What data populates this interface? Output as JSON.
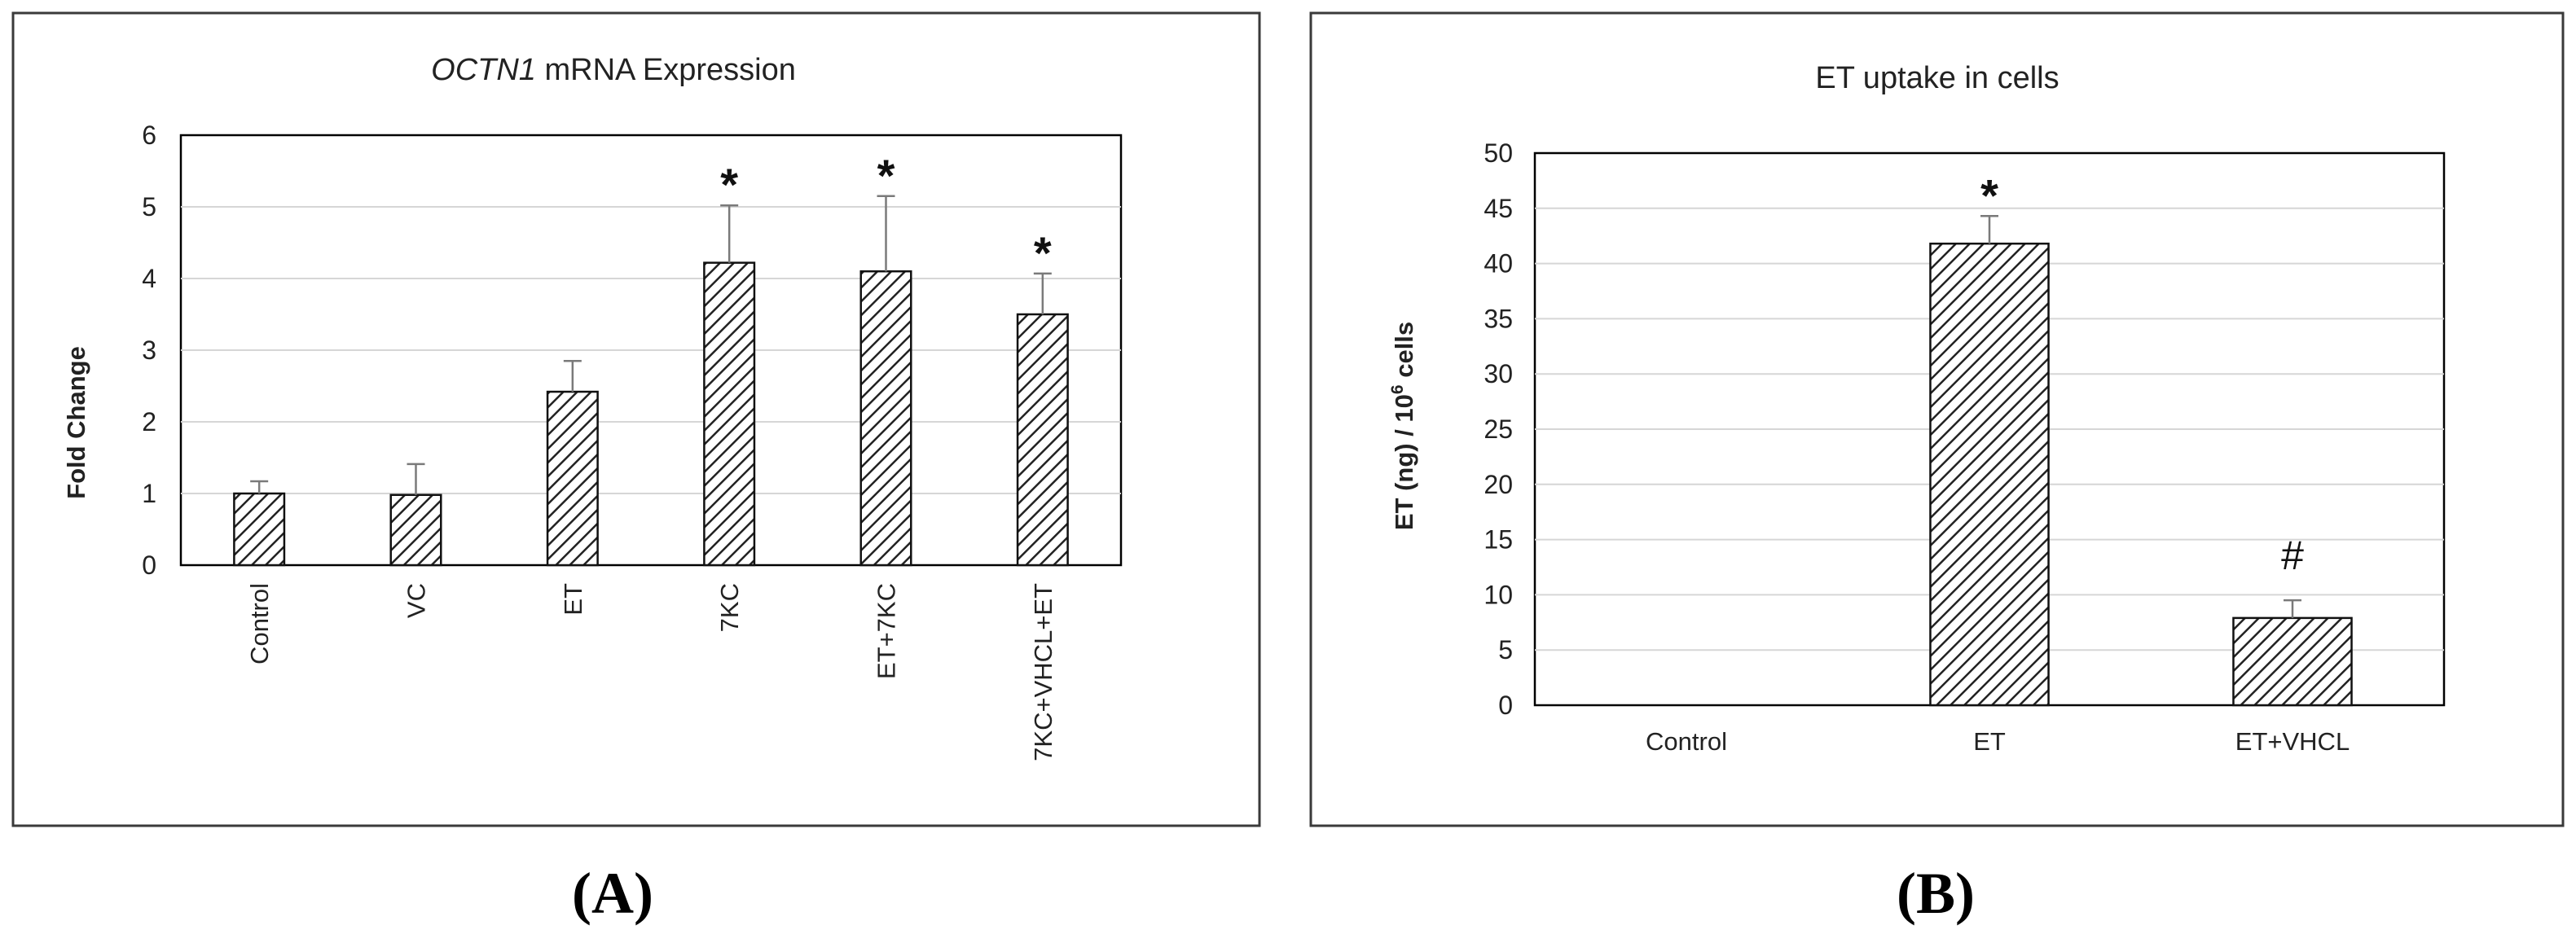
{
  "panel_labels": [
    "(A)",
    "(B)"
  ],
  "chart_data": [
    {
      "type": "bar",
      "title_italic": "OCTN1",
      "title_rest": " mRNA Expression",
      "xlabel": "",
      "ylabel": "Fold Change",
      "ylim": [
        0,
        6
      ],
      "yticks": [
        "0",
        "1",
        "2",
        "3",
        "4",
        "5",
        "6"
      ],
      "grid": true,
      "categories": [
        "Control",
        "VC",
        "ET",
        "7KC",
        "ET+7KC",
        "7KC+VHCL+ET"
      ],
      "values": [
        1.0,
        0.98,
        2.42,
        4.22,
        4.1,
        3.5
      ],
      "errors": [
        0.17,
        0.43,
        0.43,
        0.8,
        1.05,
        0.57
      ],
      "annotations": [
        "",
        "",
        "",
        "*",
        "*",
        "*"
      ],
      "fill_pattern": "diagonal-hatch"
    },
    {
      "type": "bar",
      "title": "ET uptake in cells",
      "xlabel": "",
      "ylabel_main": "ET (ng) / 10",
      "ylabel_sup": "6",
      "ylabel_tail": " cells",
      "ylim": [
        0,
        50
      ],
      "yticks": [
        "0",
        "5",
        "10",
        "15",
        "20",
        "25",
        "30",
        "35",
        "40",
        "45",
        "50"
      ],
      "grid": true,
      "categories": [
        "Control",
        "ET",
        "ET+VHCL"
      ],
      "values": [
        0,
        41.8,
        7.9
      ],
      "errors": [
        0,
        2.5,
        1.6
      ],
      "annotations": [
        "",
        "*",
        "#"
      ],
      "fill_pattern": "diagonal-hatch"
    }
  ]
}
